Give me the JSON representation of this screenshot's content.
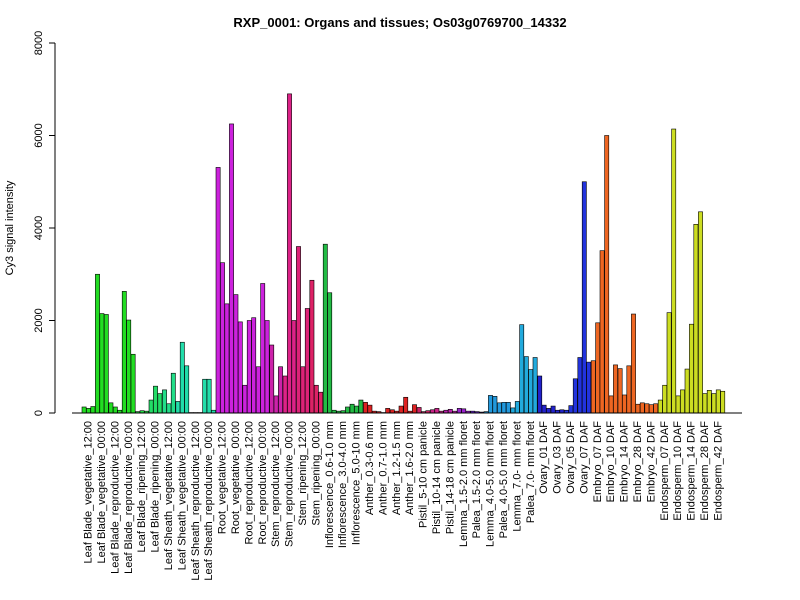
{
  "chart_data": {
    "type": "bar",
    "title": "RXP_0001: Organs and tissues; Os03g0769700_14332",
    "xlabel": "",
    "ylabel": "Cy3 signal intensity",
    "ylim": [
      0,
      8000
    ],
    "yticks": [
      0,
      2000,
      4000,
      6000,
      8000
    ],
    "grid": false,
    "groups": [
      {
        "label": "Leaf Blade_vegetative_12:00",
        "color": "#22dd22",
        "values": [
          130,
          100,
          140
        ]
      },
      {
        "label": "Leaf Blade_vegetative_00:00",
        "color": "#22dd22",
        "values": [
          3000,
          2150,
          2130
        ]
      },
      {
        "label": "Leaf Blade_reproductive_12:00",
        "color": "#22dd22",
        "values": [
          220,
          130,
          60
        ]
      },
      {
        "label": "Leaf Blade_reproductive_00:00",
        "color": "#22dd22",
        "values": [
          2630,
          2010,
          1270
        ]
      },
      {
        "label": "Leaf Blade_ripening_12:00",
        "color": "#22dd44",
        "values": [
          30,
          50,
          40
        ]
      },
      {
        "label": "Leaf Blade_ripening_00:00",
        "color": "#22dd66",
        "values": [
          280,
          580,
          420
        ]
      },
      {
        "label": "Leaf Sheath_vegetative_12:00",
        "color": "#22dd88",
        "values": [
          500,
          200,
          860
        ]
      },
      {
        "label": "Leaf Sheath_vegetative_00:00",
        "color": "#22ddaa",
        "values": [
          250,
          1530,
          1020
        ]
      },
      {
        "label": "Leaf Sheath_reproductive_12:00",
        "color": "#22ddaa",
        "values": [
          10,
          10,
          10
        ]
      },
      {
        "label": "Leaf Sheath_reproductive_00:00",
        "color": "#22ddaa",
        "values": [
          730,
          730,
          60
        ]
      },
      {
        "label": "Root_vegetative_12:00",
        "color": "#cc22dd",
        "values": [
          5310,
          3250,
          2360
        ]
      },
      {
        "label": "Root_vegetative_00:00",
        "color": "#cc22dd",
        "values": [
          6250,
          2560,
          1970
        ]
      },
      {
        "label": "Root_reproductive_12:00",
        "color": "#cc22dd",
        "values": [
          600,
          2000,
          2060
        ]
      },
      {
        "label": "Root_reproductive_00:00",
        "color": "#cc22dd",
        "values": [
          1000,
          2800,
          2000
        ]
      },
      {
        "label": "Stem_reproductive_12:00",
        "color": "#cc22aa",
        "values": [
          1470,
          370,
          1000
        ]
      },
      {
        "label": "Stem_reproductive_00:00",
        "color": "#dd2288",
        "values": [
          800,
          6900,
          2000
        ]
      },
      {
        "label": "Stem_ripening_12:00",
        "color": "#dd2277",
        "values": [
          3600,
          1000,
          2260
        ]
      },
      {
        "label": "Stem_ripening_00:00",
        "color": "#dd2266",
        "values": [
          2870,
          600,
          450
        ]
      },
      {
        "label": "Inflorescence_0.6-1.0 mm",
        "color": "#22bb44",
        "values": [
          3650,
          2600,
          60
        ]
      },
      {
        "label": "Inflorescence_3.0-4.0 mm",
        "color": "#22bb44",
        "values": [
          40,
          50,
          130
        ]
      },
      {
        "label": "Inflorescence_5.0-10 mm",
        "color": "#22bb44",
        "values": [
          190,
          150,
          280
        ]
      },
      {
        "label": "Anther_0.3-0.6 mm",
        "color": "#dd2222",
        "values": [
          230,
          170,
          40
        ]
      },
      {
        "label": "Anther_0.7-1.0 mm",
        "color": "#dd2222",
        "values": [
          30,
          10,
          100
        ]
      },
      {
        "label": "Anther_1.2-1.5 mm",
        "color": "#dd2222",
        "values": [
          70,
          40,
          150
        ]
      },
      {
        "label": "Anther_1.6-2.0 mm",
        "color": "#dd2222",
        "values": [
          340,
          40,
          180
        ]
      },
      {
        "label": "Pistil_5-10 cm panicle",
        "color": "#cc2266",
        "values": [
          120,
          30,
          50
        ]
      },
      {
        "label": "Pistil_10-14 cm panicle",
        "color": "#cc2288",
        "values": [
          70,
          100,
          40
        ]
      },
      {
        "label": "Pistil_14-18 cm panicle",
        "color": "#bb22aa",
        "values": [
          60,
          80,
          40
        ]
      },
      {
        "label": "Lemma_1.5-2.0 mm floret",
        "color": "#9922cc",
        "values": [
          100,
          90,
          40
        ]
      },
      {
        "label": "Palea_1.5-2.0 mm floret",
        "color": "#6622cc",
        "values": [
          40,
          30,
          20
        ]
      },
      {
        "label": "Lemma_4.0-5.0 mm floret",
        "color": "#2299dd",
        "values": [
          30,
          380,
          360
        ]
      },
      {
        "label": "Palea_4.0-5.0 mm floret",
        "color": "#2299dd",
        "values": [
          220,
          230,
          230
        ]
      },
      {
        "label": "Lemma_7.0- mm floret",
        "color": "#22aadd",
        "values": [
          110,
          250,
          1910
        ]
      },
      {
        "label": "Palea_7.0- mm floret",
        "color": "#22aadd",
        "values": [
          1220,
          940,
          1200
        ]
      },
      {
        "label": "Ovary_01 DAF",
        "color": "#2222cc",
        "values": [
          800,
          170,
          100
        ]
      },
      {
        "label": "Ovary_03 DAF",
        "color": "#2222cc",
        "values": [
          150,
          60,
          70
        ]
      },
      {
        "label": "Ovary_05 DAF",
        "color": "#2233dd",
        "values": [
          60,
          160,
          740
        ]
      },
      {
        "label": "Ovary_07 DAF",
        "color": "#2233dd",
        "values": [
          1200,
          5000,
          1100
        ]
      },
      {
        "label": "Embryo_07 DAF",
        "color": "#ee6622",
        "values": [
          1130,
          1950,
          3510
        ]
      },
      {
        "label": "Embryo_10 DAF",
        "color": "#ee6622",
        "values": [
          6000,
          370,
          1040
        ]
      },
      {
        "label": "Embryo_14 DAF",
        "color": "#ee6622",
        "values": [
          960,
          390,
          1020
        ]
      },
      {
        "label": "Embryo_28 DAF",
        "color": "#ee6622",
        "values": [
          2140,
          190,
          220
        ]
      },
      {
        "label": "Embryo_42 DAF",
        "color": "#ee6622",
        "values": [
          200,
          180,
          200
        ]
      },
      {
        "label": "Endosperm_07 DAF",
        "color": "#ccdd22",
        "values": [
          280,
          600,
          2170
        ]
      },
      {
        "label": "Endosperm_10 DAF",
        "color": "#ccdd22",
        "values": [
          6140,
          370,
          500
        ]
      },
      {
        "label": "Endosperm_14 DAF",
        "color": "#ccdd22",
        "values": [
          950,
          1920,
          4080
        ]
      },
      {
        "label": "Endosperm_28 DAF",
        "color": "#ccdd22",
        "values": [
          4350,
          420,
          490
        ]
      },
      {
        "label": "Endosperm_42 DAF",
        "color": "#ccdd22",
        "values": [
          420,
          500,
          470
        ]
      }
    ]
  }
}
